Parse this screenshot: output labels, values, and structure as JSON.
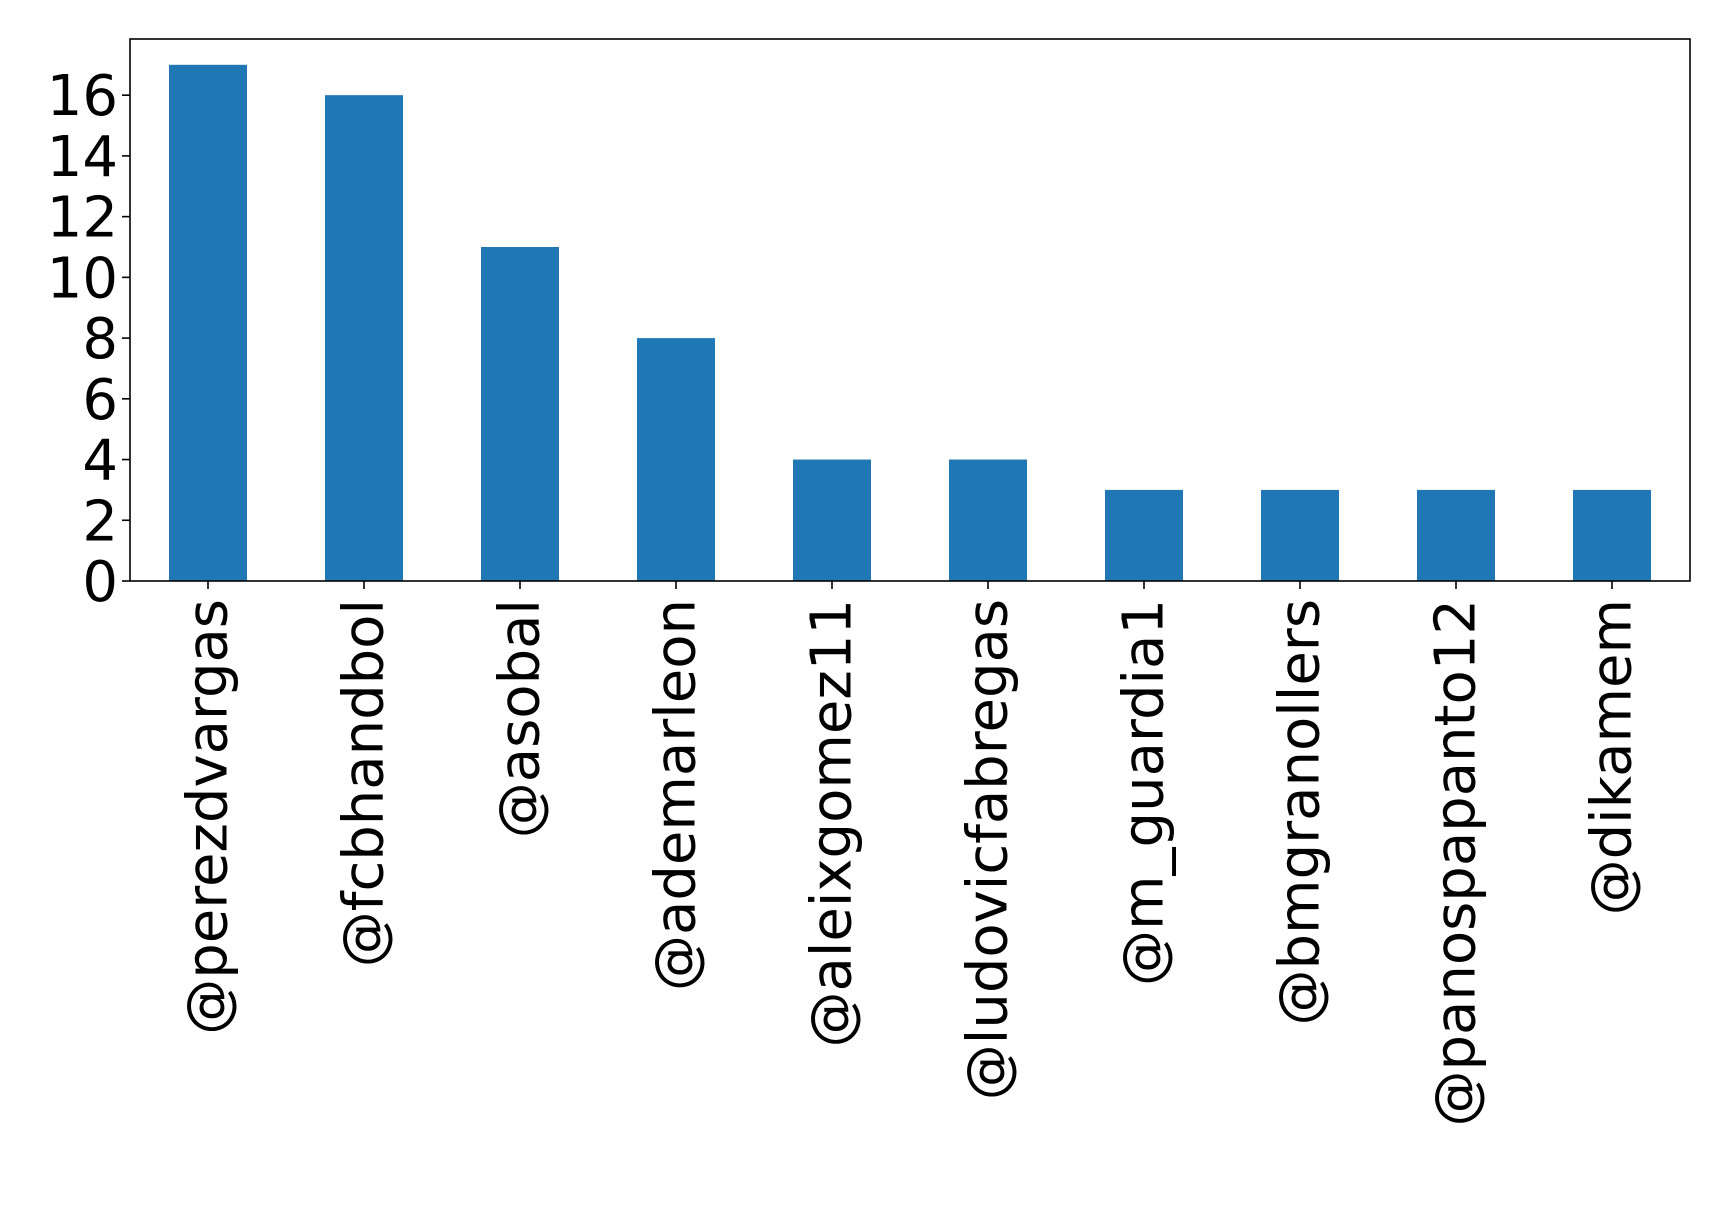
{
  "chart_data": {
    "type": "bar",
    "categories": [
      "@perezdvargas",
      "@fcbhandbol",
      "@asobal",
      "@ademarleon",
      "@aleixgomez11",
      "@ludovicfabregas",
      "@m_guardia1",
      "@bmgranollers",
      "@panospapanto12",
      "@dikamem"
    ],
    "values": [
      17,
      16,
      11,
      8,
      4,
      4,
      3,
      3,
      3,
      3
    ],
    "yticks": [
      "0",
      "2",
      "4",
      "6",
      "8",
      "10",
      "12",
      "14",
      "16"
    ],
    "ylim": [
      0,
      17.85
    ],
    "title": "",
    "xlabel": "",
    "ylabel": "",
    "grid": false,
    "bar_color": "#1f77b4"
  }
}
